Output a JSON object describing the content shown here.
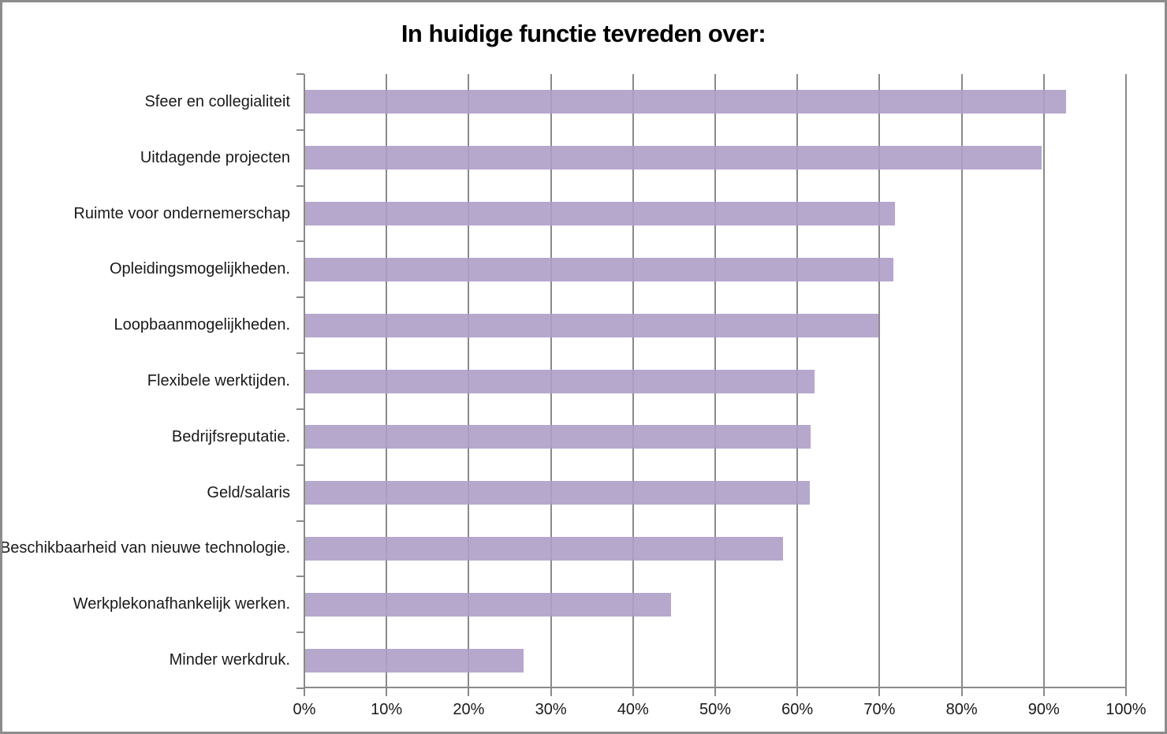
{
  "chart_data": {
    "type": "bar",
    "orientation": "horizontal",
    "title": "In huidige functie tevreden over:",
    "categories": [
      "Sfeer en collegialiteit",
      "Uitdagende projecten",
      "Ruimte voor ondernemerschap",
      "Opleidingsmogelijkheden.",
      "Loopbaanmogelijkheden.",
      "Flexibele werktijden.",
      "Bedrijfsreputatie.",
      "Geld/salaris",
      "Beschikbaarheid van nieuwe technologie.",
      "Werkplekonafhankelijk werken.",
      "Minder werkdruk."
    ],
    "values": [
      92.6,
      89.6,
      71.8,
      71.6,
      69.8,
      62.0,
      61.5,
      61.4,
      58.2,
      44.5,
      26.6
    ],
    "value_unit": "%",
    "xlabel": "",
    "ylabel": "",
    "xlim": [
      0,
      100
    ],
    "x_tick_labels": [
      "0%",
      "10%",
      "20%",
      "30%",
      "40%",
      "50%",
      "60%",
      "70%",
      "80%",
      "90%",
      "100%"
    ],
    "grid": "vertical-gridlines-on",
    "legend": "none",
    "colors": {
      "bar_fill": "#b5a9cc",
      "bar_fill_base": "#8064a2",
      "gridline": "#8a8a8a",
      "axis": "#8a8a8a",
      "frame_border": "#8c8c8c",
      "title_text": "#000000",
      "label_text": "#1a1a1a",
      "background": "#ffffff"
    }
  }
}
